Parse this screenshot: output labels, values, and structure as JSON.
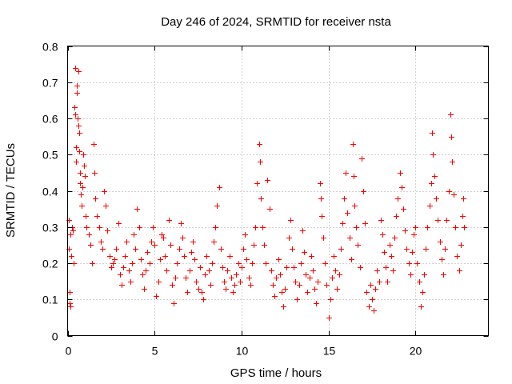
{
  "chart_data": {
    "type": "scatter",
    "title": "Day 246 of 2024, SRMTID for receiver nsta",
    "xlabel": "GPS time / hours",
    "ylabel": "SRMTID / TECUs",
    "xlim": [
      0,
      24.2
    ],
    "ylim": [
      0,
      0.8
    ],
    "xticks": [
      0,
      5,
      10,
      15,
      20
    ],
    "xtick_labels": [
      "0",
      "5",
      "10",
      "15",
      "20"
    ],
    "yticks": [
      0,
      0.1,
      0.2,
      0.3,
      0.4,
      0.5,
      0.6,
      0.7,
      0.8
    ],
    "ytick_labels": [
      "0",
      "0.1",
      "0.2",
      "0.3",
      "0.4",
      "0.5",
      "0.6",
      "0.7",
      "0.8"
    ],
    "grid": true,
    "marker": "+",
    "color": "#ff0000",
    "series": [
      {
        "name": "SRMTID",
        "points": [
          [
            0.05,
            0.32
          ],
          [
            0.08,
            0.24
          ],
          [
            0.1,
            0.12
          ],
          [
            0.12,
            0.09
          ],
          [
            0.15,
            0.08
          ],
          [
            0.18,
            0.28
          ],
          [
            0.2,
            0.22
          ],
          [
            0.25,
            0.3
          ],
          [
            0.3,
            0.29
          ],
          [
            0.35,
            0.2
          ],
          [
            0.4,
            0.63
          ],
          [
            0.42,
            0.74
          ],
          [
            0.45,
            0.61
          ],
          [
            0.48,
            0.52
          ],
          [
            0.5,
            0.48
          ],
          [
            0.52,
            0.69
          ],
          [
            0.55,
            0.67
          ],
          [
            0.58,
            0.6
          ],
          [
            0.6,
            0.58
          ],
          [
            0.62,
            0.73
          ],
          [
            0.65,
            0.56
          ],
          [
            0.68,
            0.51
          ],
          [
            0.7,
            0.45
          ],
          [
            0.72,
            0.42
          ],
          [
            0.75,
            0.39
          ],
          [
            0.8,
            0.36
          ],
          [
            0.85,
            0.41
          ],
          [
            0.9,
            0.5
          ],
          [
            0.95,
            0.47
          ],
          [
            1.0,
            0.44
          ],
          [
            1.05,
            0.33
          ],
          [
            1.1,
            0.3
          ],
          [
            1.2,
            0.28
          ],
          [
            1.3,
            0.25
          ],
          [
            1.4,
            0.2
          ],
          [
            1.5,
            0.53
          ],
          [
            1.55,
            0.45
          ],
          [
            1.6,
            0.38
          ],
          [
            1.7,
            0.33
          ],
          [
            1.8,
            0.3
          ],
          [
            1.9,
            0.26
          ],
          [
            2.0,
            0.24
          ],
          [
            2.1,
            0.4
          ],
          [
            2.2,
            0.36
          ],
          [
            2.3,
            0.29
          ],
          [
            2.4,
            0.22
          ],
          [
            2.5,
            0.19
          ],
          [
            2.6,
            0.2
          ],
          [
            2.7,
            0.21
          ],
          [
            2.8,
            0.24
          ],
          [
            2.9,
            0.31
          ],
          [
            3.0,
            0.17
          ],
          [
            3.1,
            0.14
          ],
          [
            3.2,
            0.19
          ],
          [
            3.3,
            0.22
          ],
          [
            3.4,
            0.26
          ],
          [
            3.5,
            0.18
          ],
          [
            3.6,
            0.15
          ],
          [
            3.7,
            0.2
          ],
          [
            3.8,
            0.28
          ],
          [
            3.9,
            0.24
          ],
          [
            4.0,
            0.35
          ],
          [
            4.1,
            0.3
          ],
          [
            4.2,
            0.21
          ],
          [
            4.3,
            0.17
          ],
          [
            4.4,
            0.13
          ],
          [
            4.5,
            0.18
          ],
          [
            4.6,
            0.23
          ],
          [
            4.7,
            0.2
          ],
          [
            4.8,
            0.26
          ],
          [
            4.9,
            0.3
          ],
          [
            5.0,
            0.25
          ],
          [
            5.1,
            0.11
          ],
          [
            5.2,
            0.15
          ],
          [
            5.3,
            0.21
          ],
          [
            5.4,
            0.28
          ],
          [
            5.5,
            0.27
          ],
          [
            5.6,
            0.22
          ],
          [
            5.7,
            0.18
          ],
          [
            5.8,
            0.32
          ],
          [
            5.9,
            0.25
          ],
          [
            6.0,
            0.14
          ],
          [
            6.1,
            0.09
          ],
          [
            6.2,
            0.16
          ],
          [
            6.3,
            0.2
          ],
          [
            6.4,
            0.24
          ],
          [
            6.5,
            0.31
          ],
          [
            6.6,
            0.27
          ],
          [
            6.7,
            0.22
          ],
          [
            6.8,
            0.16
          ],
          [
            6.9,
            0.12
          ],
          [
            7.0,
            0.18
          ],
          [
            7.1,
            0.23
          ],
          [
            7.2,
            0.26
          ],
          [
            7.3,
            0.21
          ],
          [
            7.4,
            0.15
          ],
          [
            7.5,
            0.13
          ],
          [
            7.6,
            0.19
          ],
          [
            7.7,
            0.12
          ],
          [
            7.8,
            0.1
          ],
          [
            7.9,
            0.17
          ],
          [
            8.0,
            0.22
          ],
          [
            8.1,
            0.18
          ],
          [
            8.2,
            0.14
          ],
          [
            8.3,
            0.2
          ],
          [
            8.4,
            0.26
          ],
          [
            8.5,
            0.3
          ],
          [
            8.6,
            0.36
          ],
          [
            8.7,
            0.41
          ],
          [
            8.8,
            0.24
          ],
          [
            8.9,
            0.19
          ],
          [
            9.0,
            0.15
          ],
          [
            9.1,
            0.13
          ],
          [
            9.2,
            0.18
          ],
          [
            9.3,
            0.22
          ],
          [
            9.4,
            0.16
          ],
          [
            9.5,
            0.12
          ],
          [
            9.6,
            0.14
          ],
          [
            9.7,
            0.17
          ],
          [
            9.8,
            0.2
          ],
          [
            9.9,
            0.15
          ],
          [
            10.0,
            0.19
          ],
          [
            10.1,
            0.24
          ],
          [
            10.2,
            0.28
          ],
          [
            10.3,
            0.21
          ],
          [
            10.4,
            0.16
          ],
          [
            10.5,
            0.14
          ],
          [
            10.6,
            0.2
          ],
          [
            10.7,
            0.25
          ],
          [
            10.8,
            0.3
          ],
          [
            10.9,
            0.42
          ],
          [
            11.0,
            0.53
          ],
          [
            11.05,
            0.48
          ],
          [
            11.1,
            0.38
          ],
          [
            11.2,
            0.3
          ],
          [
            11.3,
            0.25
          ],
          [
            11.4,
            0.2
          ],
          [
            11.5,
            0.43
          ],
          [
            11.6,
            0.35
          ],
          [
            11.7,
            0.18
          ],
          [
            11.8,
            0.14
          ],
          [
            11.9,
            0.11
          ],
          [
            12.0,
            0.16
          ],
          [
            12.1,
            0.21
          ],
          [
            12.2,
            0.17
          ],
          [
            12.3,
            0.12
          ],
          [
            12.4,
            0.08
          ],
          [
            12.5,
            0.13
          ],
          [
            12.6,
            0.19
          ],
          [
            12.7,
            0.27
          ],
          [
            12.8,
            0.32
          ],
          [
            12.9,
            0.24
          ],
          [
            13.0,
            0.19
          ],
          [
            13.1,
            0.15
          ],
          [
            13.2,
            0.1
          ],
          [
            13.3,
            0.14
          ],
          [
            13.4,
            0.2
          ],
          [
            13.5,
            0.29
          ],
          [
            13.6,
            0.23
          ],
          [
            13.7,
            0.17
          ],
          [
            13.8,
            0.12
          ],
          [
            13.9,
            0.16
          ],
          [
            14.0,
            0.22
          ],
          [
            14.1,
            0.18
          ],
          [
            14.2,
            0.13
          ],
          [
            14.3,
            0.09
          ],
          [
            14.4,
            0.15
          ],
          [
            14.5,
            0.42
          ],
          [
            14.55,
            0.38
          ],
          [
            14.6,
            0.33
          ],
          [
            14.7,
            0.27
          ],
          [
            14.8,
            0.2
          ],
          [
            14.9,
            0.14
          ],
          [
            15.0,
            0.05
          ],
          [
            15.1,
            0.1
          ],
          [
            15.2,
            0.16
          ],
          [
            15.3,
            0.22
          ],
          [
            15.4,
            0.18
          ],
          [
            15.5,
            0.13
          ],
          [
            15.6,
            0.17
          ],
          [
            15.7,
            0.24
          ],
          [
            15.8,
            0.31
          ],
          [
            15.9,
            0.38
          ],
          [
            16.0,
            0.45
          ],
          [
            16.1,
            0.34
          ],
          [
            16.2,
            0.27
          ],
          [
            16.3,
            0.21
          ],
          [
            16.4,
            0.53
          ],
          [
            16.45,
            0.44
          ],
          [
            16.5,
            0.36
          ],
          [
            16.6,
            0.3
          ],
          [
            16.7,
            0.25
          ],
          [
            16.8,
            0.19
          ],
          [
            16.9,
            0.49
          ],
          [
            17.0,
            0.4
          ],
          [
            17.1,
            0.31
          ],
          [
            17.2,
            0.12
          ],
          [
            17.3,
            0.08
          ],
          [
            17.4,
            0.14
          ],
          [
            17.5,
            0.1
          ],
          [
            17.6,
            0.07
          ],
          [
            17.7,
            0.13
          ],
          [
            17.8,
            0.18
          ],
          [
            17.9,
            0.15
          ],
          [
            18.0,
            0.32
          ],
          [
            18.1,
            0.28
          ],
          [
            18.2,
            0.23
          ],
          [
            18.3,
            0.19
          ],
          [
            18.4,
            0.15
          ],
          [
            18.5,
            0.25
          ],
          [
            18.6,
            0.22
          ],
          [
            18.7,
            0.18
          ],
          [
            18.8,
            0.27
          ],
          [
            18.9,
            0.33
          ],
          [
            19.0,
            0.38
          ],
          [
            19.1,
            0.45
          ],
          [
            19.2,
            0.41
          ],
          [
            19.3,
            0.35
          ],
          [
            19.4,
            0.29
          ],
          [
            19.5,
            0.24
          ],
          [
            19.6,
            0.2
          ],
          [
            19.7,
            0.17
          ],
          [
            19.8,
            0.23
          ],
          [
            19.9,
            0.28
          ],
          [
            20.0,
            0.3
          ],
          [
            20.1,
            0.2
          ],
          [
            20.2,
            0.15
          ],
          [
            20.3,
            0.08
          ],
          [
            20.4,
            0.12
          ],
          [
            20.5,
            0.17
          ],
          [
            20.6,
            0.24
          ],
          [
            20.7,
            0.3
          ],
          [
            20.8,
            0.36
          ],
          [
            20.9,
            0.42
          ],
          [
            20.95,
            0.56
          ],
          [
            21.0,
            0.5
          ],
          [
            21.1,
            0.44
          ],
          [
            21.2,
            0.38
          ],
          [
            21.3,
            0.32
          ],
          [
            21.4,
            0.26
          ],
          [
            21.5,
            0.21
          ],
          [
            21.6,
            0.17
          ],
          [
            21.7,
            0.24
          ],
          [
            21.8,
            0.32
          ],
          [
            21.9,
            0.4
          ],
          [
            22.0,
            0.61
          ],
          [
            22.05,
            0.55
          ],
          [
            22.1,
            0.48
          ],
          [
            22.2,
            0.39
          ],
          [
            22.3,
            0.3
          ],
          [
            22.4,
            0.22
          ],
          [
            22.5,
            0.18
          ],
          [
            22.6,
            0.25
          ],
          [
            22.7,
            0.33
          ],
          [
            22.75,
            0.38
          ],
          [
            22.8,
            0.3
          ]
        ]
      }
    ]
  }
}
